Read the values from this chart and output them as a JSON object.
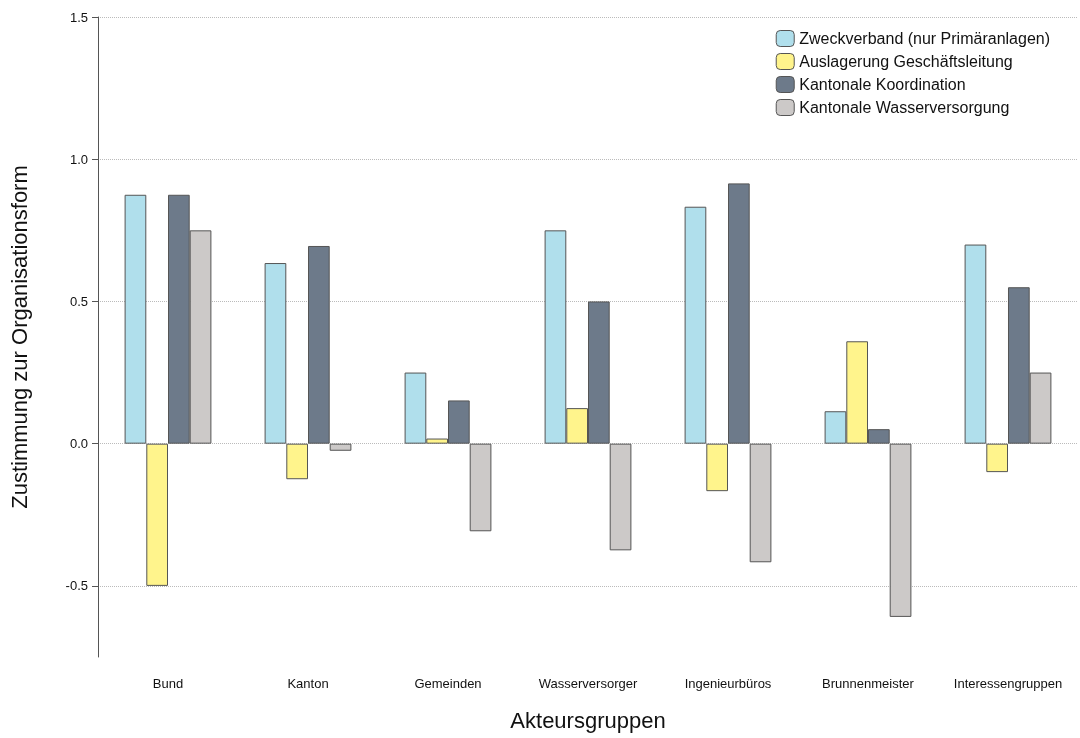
{
  "chart_data": {
    "type": "bar",
    "xlabel": "Akteursgruppen",
    "ylabel": "Zustimmung zur Organisationsform",
    "categories": [
      "Bund",
      "Kanton",
      "Gemeinden",
      "Wasserversorger",
      "Ingenieurbüros",
      "Brunnenmeister",
      "Interessengruppen"
    ],
    "series": [
      {
        "name": "Zweckverband (nur Primäranlagen)",
        "color": "#b0dfec",
        "values": [
          0.875,
          0.635,
          0.25,
          0.75,
          0.833,
          0.114,
          0.7
        ]
      },
      {
        "name": "Auslagerung Geschäftsleitung",
        "color": "#fff48c",
        "values": [
          -0.5,
          -0.125,
          0.018,
          0.125,
          -0.167,
          0.36,
          -0.1
        ]
      },
      {
        "name": "Kantonale Koordination",
        "color": "#6d7a8a",
        "values": [
          0.875,
          0.695,
          0.152,
          0.5,
          0.915,
          0.051,
          0.55
        ]
      },
      {
        "name": "Kantonale Wasserversorgung",
        "color": "#ccc9c8",
        "values": [
          0.75,
          -0.025,
          -0.308,
          -0.375,
          -0.417,
          -0.609,
          0.25
        ]
      }
    ],
    "ylim": [
      -0.75,
      1.5
    ],
    "yticks": [
      -0.5,
      {
        "value": 0,
        "label": "0.0"
      },
      0.5,
      {
        "value": 1,
        "label": "1.0"
      },
      1.5
    ],
    "grid": "y",
    "legend": "top right"
  }
}
